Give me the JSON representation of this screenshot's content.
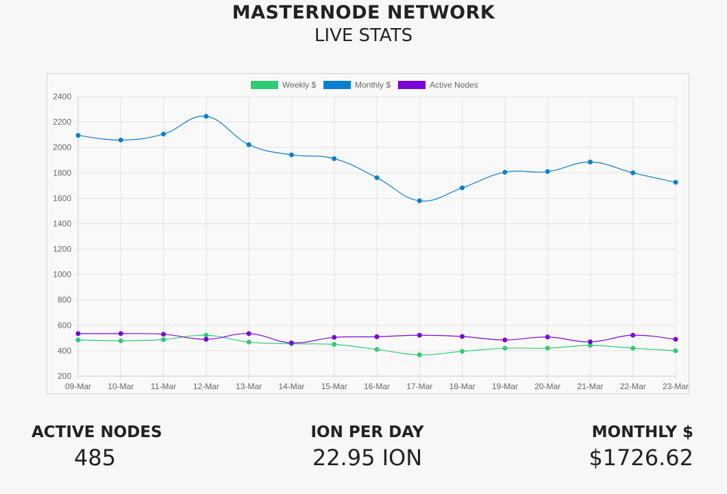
{
  "header": {
    "title": "MASTERNODE NETWORK",
    "subtitle": "LIVE STATS"
  },
  "stats": {
    "active_nodes": {
      "label": "ACTIVE NODES",
      "value": "485"
    },
    "ion_per_day": {
      "label": "ION PER DAY",
      "value": "22.95 ION"
    },
    "monthly": {
      "label": "MONTHLY $",
      "value": "$1726.62"
    }
  },
  "chart_data": {
    "type": "line",
    "categories": [
      "09-Mar",
      "10-Mar",
      "11-Mar",
      "12-Mar",
      "13-Mar",
      "14-Mar",
      "15-Mar",
      "16-Mar",
      "17-Mar",
      "18-Mar",
      "19-Mar",
      "20-Mar",
      "21-Mar",
      "22-Mar",
      "23-Mar"
    ],
    "series": [
      {
        "name": "Weekly $",
        "color": "#2ecc71",
        "values": [
          485,
          478,
          488,
          522,
          468,
          455,
          450,
          410,
          368,
          395,
          420,
          420,
          442,
          420,
          400
        ]
      },
      {
        "name": "Monthly $",
        "color": "#0a7fcf",
        "values": [
          2095,
          2058,
          2105,
          2245,
          2022,
          1942,
          1912,
          1762,
          1580,
          1682,
          1805,
          1810,
          1885,
          1800,
          1726
        ]
      },
      {
        "name": "Active Nodes",
        "color": "#7a05d8",
        "values": [
          535,
          535,
          530,
          490,
          535,
          462,
          505,
          510,
          522,
          512,
          485,
          508,
          470,
          522,
          490
        ]
      }
    ],
    "ylim": [
      200,
      2400
    ],
    "yticks": [
      200,
      400,
      600,
      800,
      1000,
      1200,
      1400,
      1600,
      1800,
      2000,
      2200,
      2400
    ],
    "grid": true,
    "legend": "top-center"
  }
}
